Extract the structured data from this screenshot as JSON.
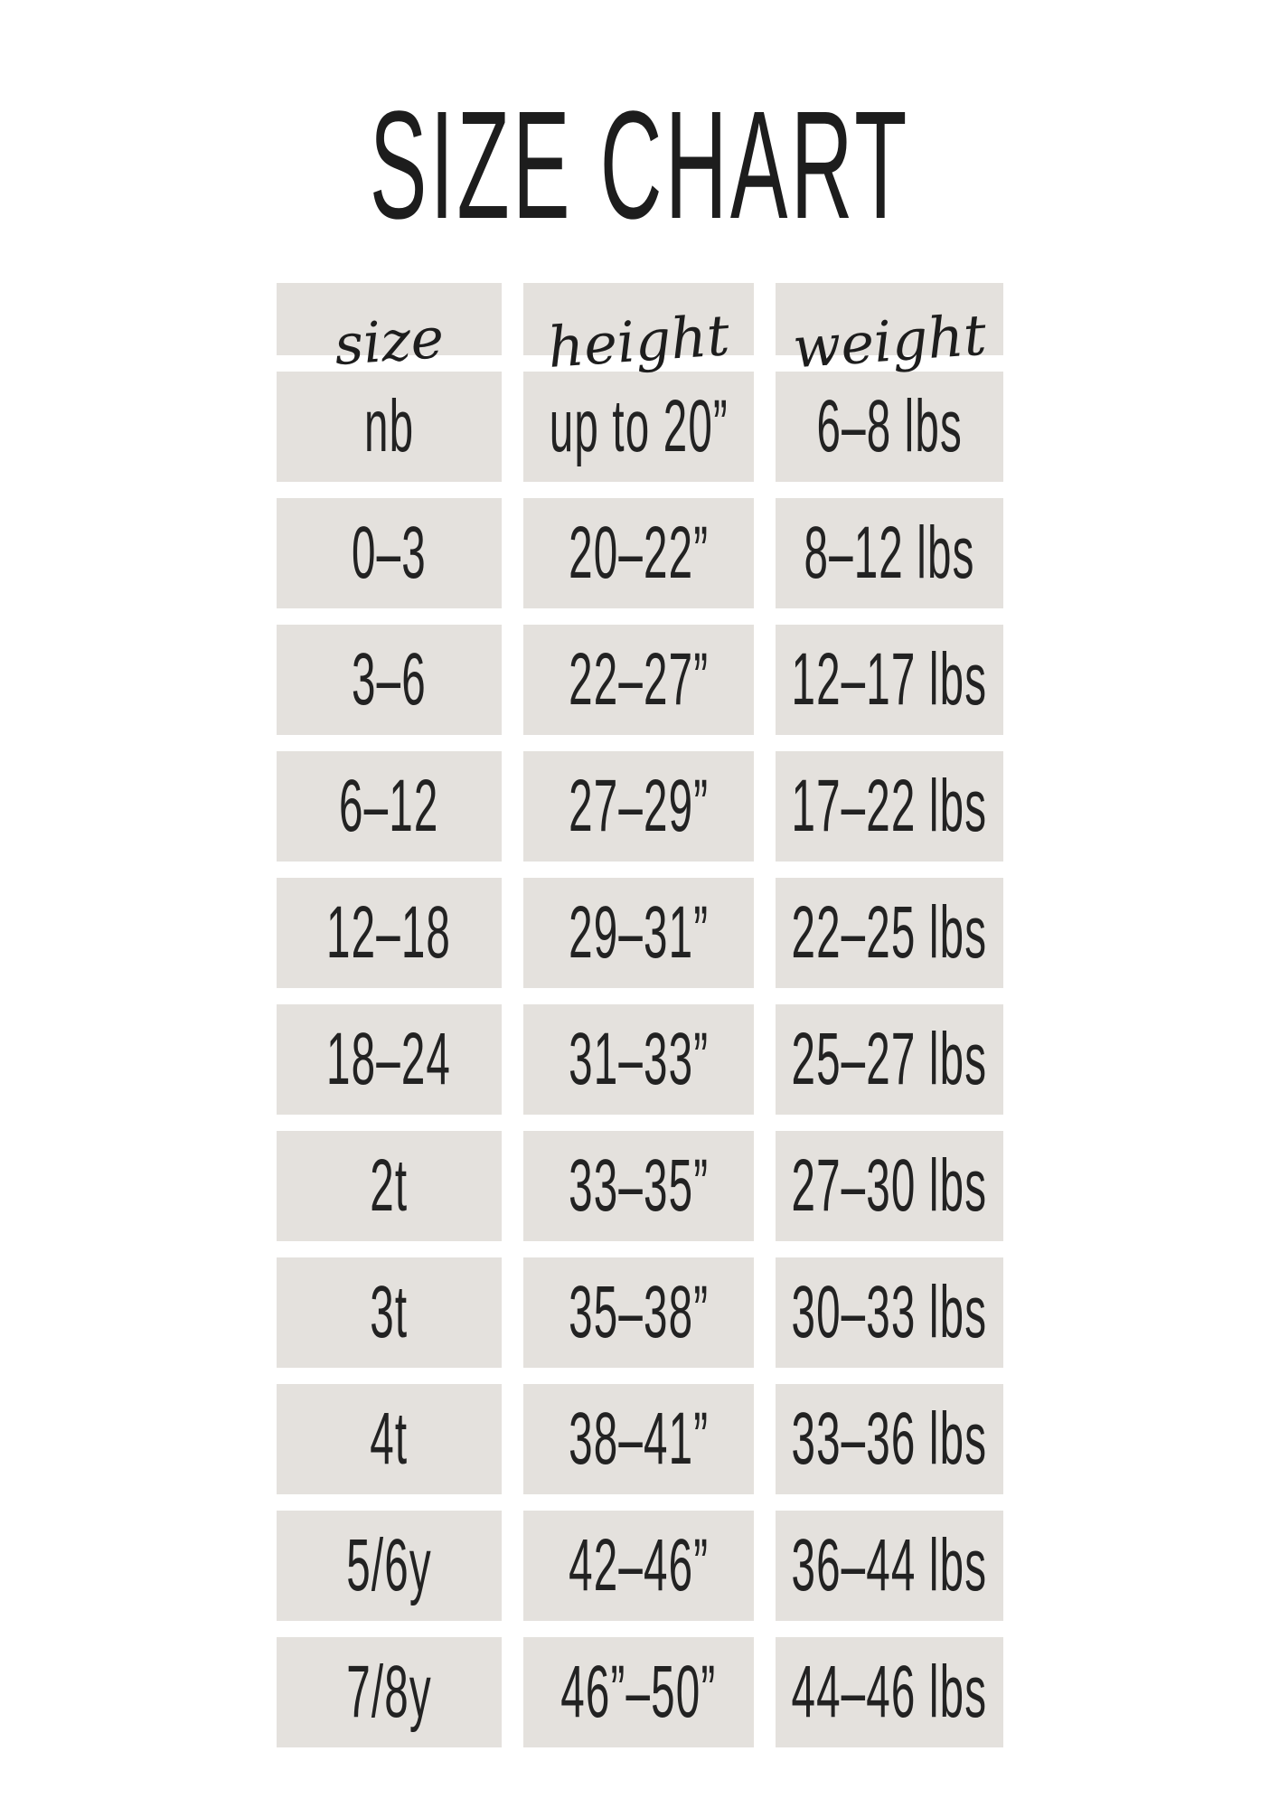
{
  "title": "SIZE CHART",
  "colors": {
    "background": "#ffffff",
    "cell_background": "#e4e1dd",
    "text": "#222222"
  },
  "table": {
    "columns": [
      "size",
      "height",
      "weight"
    ],
    "rows": [
      [
        "nb",
        "up to 20”",
        "6–8 lbs"
      ],
      [
        "0–3",
        "20–22”",
        "8–12 lbs"
      ],
      [
        "3–6",
        "22–27”",
        "12–17 lbs"
      ],
      [
        "6–12",
        "27–29”",
        "17–22 lbs"
      ],
      [
        "12–18",
        "29–31”",
        "22–25 lbs"
      ],
      [
        "18–24",
        "31–33”",
        "25–27 lbs"
      ],
      [
        "2t",
        "33–35”",
        "27–30 lbs"
      ],
      [
        "3t",
        "35–38”",
        "30–33 lbs"
      ],
      [
        "4t",
        "38–41”",
        "33–36 lbs"
      ],
      [
        "5/6y",
        "42–46”",
        "36–44 lbs"
      ],
      [
        "7/8y",
        "46”–50”",
        "44–46 lbs"
      ]
    ]
  }
}
